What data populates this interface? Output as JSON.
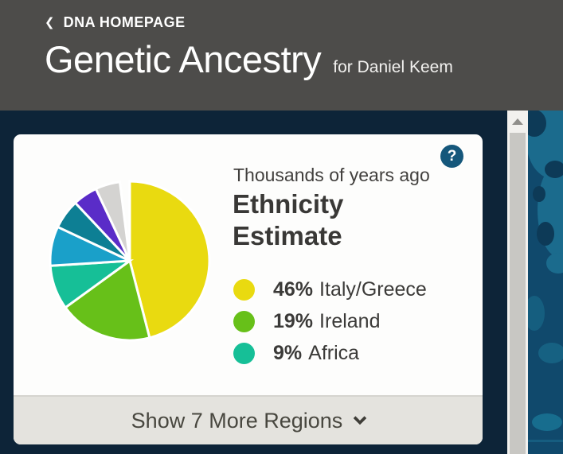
{
  "header": {
    "back_label": "DNA HOMEPAGE",
    "title": "Genetic Ancestry",
    "subtitle": "for Daniel Keem"
  },
  "icons": {
    "back_chevron": "❮",
    "help": "?"
  },
  "card": {
    "timeframe_label": "Thousands of years ago",
    "heading": "Ethnicity Estimate",
    "show_more_label": "Show 7 More Regions"
  },
  "chart_data": {
    "type": "pie",
    "title": "Ethnicity Estimate",
    "subtitle": "Thousands of years ago",
    "start_angle_deg": 0,
    "direction": "clockwise",
    "slice_gap_stroke": "#ffffff",
    "slices": [
      {
        "label": "Italy/Greece",
        "percent_label": "46%",
        "value": 46,
        "color": "#e9da10",
        "in_legend": true
      },
      {
        "label": "Ireland",
        "percent_label": "19%",
        "value": 19,
        "color": "#67c019",
        "in_legend": true
      },
      {
        "label": "Africa",
        "percent_label": "9%",
        "value": 9,
        "color": "#16bf97",
        "in_legend": true
      },
      {
        "label": "",
        "value": 8,
        "color": "#1aa0c9",
        "in_legend": false
      },
      {
        "label": "",
        "value": 6,
        "color": "#0d7f94",
        "in_legend": false
      },
      {
        "label": "",
        "value": 5,
        "color": "#5a2cc8",
        "in_legend": false
      },
      {
        "label": "",
        "value": 5,
        "color": "#d4d3d1",
        "in_legend": false
      }
    ],
    "legend_position": "right"
  },
  "colors": {
    "header_bg": "#4d4c4a",
    "page_bg": "#0d2438",
    "card_bg": "#fdfdfc",
    "footer_bg": "#e4e3de",
    "help_icon_bg": "#15577b",
    "text_dark": "#3b3a38",
    "scrollbar_thumb": "#c8c7c3",
    "map_sea": "#10496c",
    "map_land": "#1b6b8d",
    "map_land_dark": "#0d3a57"
  }
}
